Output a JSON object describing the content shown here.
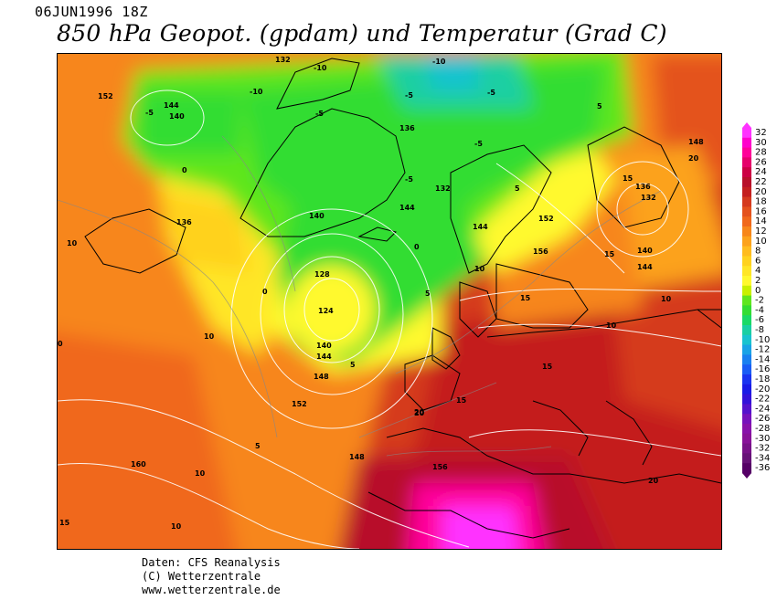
{
  "header": {
    "datestamp": "06JUN1996 18Z",
    "title": "850 hPa Geopot. (gpdam) und  Temperatur (Grad C)"
  },
  "footer": {
    "line1": "Daten: CFS Reanalysis",
    "line2": "(C) Wetterzentrale",
    "line3": "www.wetterzentrale.de"
  },
  "legend": {
    "steps": [
      {
        "label": "32",
        "color": "#ff33ff"
      },
      {
        "label": "30",
        "color": "#ff00cc"
      },
      {
        "label": "28",
        "color": "#ff0099"
      },
      {
        "label": "26",
        "color": "#e6006b"
      },
      {
        "label": "24",
        "color": "#cc0044"
      },
      {
        "label": "22",
        "color": "#b8102a"
      },
      {
        "label": "20",
        "color": "#c41f1f"
      },
      {
        "label": "18",
        "color": "#d53a1e"
      },
      {
        "label": "16",
        "color": "#e4521d"
      },
      {
        "label": "14",
        "color": "#f0681b"
      },
      {
        "label": "12",
        "color": "#f7861a"
      },
      {
        "label": "10",
        "color": "#fca21c"
      },
      {
        "label": "8",
        "color": "#ffbc1f"
      },
      {
        "label": "6",
        "color": "#ffd21f"
      },
      {
        "label": "4",
        "color": "#ffe626"
      },
      {
        "label": "2",
        "color": "#fff92e"
      },
      {
        "label": "0",
        "color": "#c8f000"
      },
      {
        "label": "-2",
        "color": "#5fe61e"
      },
      {
        "label": "-4",
        "color": "#33dd33"
      },
      {
        "label": "-6",
        "color": "#1ad966"
      },
      {
        "label": "-8",
        "color": "#1acfa3"
      },
      {
        "label": "-10",
        "color": "#19c3cf"
      },
      {
        "label": "-12",
        "color": "#1aa3e6"
      },
      {
        "label": "-14",
        "color": "#1a80f0"
      },
      {
        "label": "-16",
        "color": "#1a5cf5"
      },
      {
        "label": "-18",
        "color": "#1a33f0"
      },
      {
        "label": "-20",
        "color": "#1a1ae6"
      },
      {
        "label": "-22",
        "color": "#3311d9"
      },
      {
        "label": "-24",
        "color": "#5511cc"
      },
      {
        "label": "-26",
        "color": "#7711bb"
      },
      {
        "label": "-28",
        "color": "#8811aa"
      },
      {
        "label": "-30",
        "color": "#881199"
      },
      {
        "label": "-32",
        "color": "#771188"
      },
      {
        "label": "-34",
        "color": "#661177"
      },
      {
        "label": "-36",
        "color": "#550066"
      }
    ]
  },
  "map": {
    "geopotential_labels": [
      "152",
      "144",
      "140",
      "136",
      "132",
      "128",
      "124",
      "140",
      "144",
      "148",
      "152",
      "160",
      "156",
      "144",
      "136",
      "148",
      "156",
      "152",
      "144",
      "140",
      "132",
      "136",
      "148",
      "144",
      "140",
      "132"
    ],
    "temperature_labels": [
      "-10",
      "-5",
      "-10",
      "-5",
      "-5",
      "-10",
      "0",
      "-5",
      "0",
      "5",
      "0",
      "5",
      "10",
      "5",
      "10",
      "15",
      "20",
      "15",
      "20",
      "10",
      "5",
      "0",
      "-5",
      "-5",
      "5",
      "10",
      "15",
      "10",
      "15",
      "20",
      "15",
      "10",
      "10",
      "15",
      "20"
    ]
  }
}
